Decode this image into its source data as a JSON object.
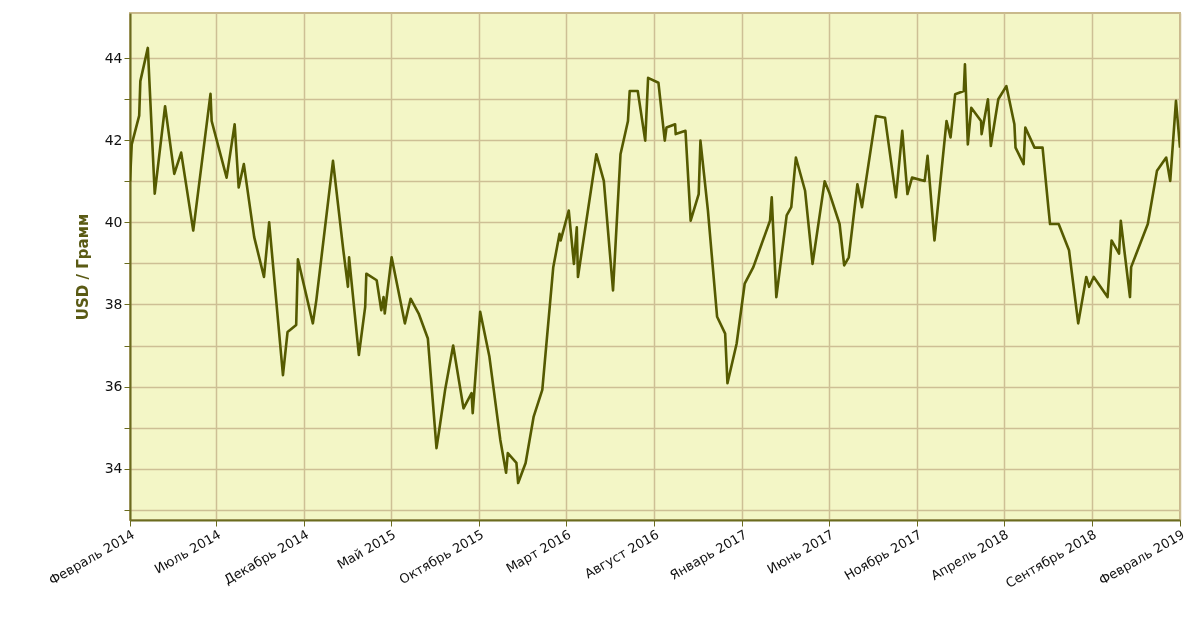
{
  "chart_data": {
    "type": "line",
    "ylabel": "USD / Грамм",
    "xlim": [
      "2014-02-01",
      "2019-02-01"
    ],
    "xticks": [
      {
        "value": "2014-02-01",
        "label": "Февраль 2014"
      },
      {
        "value": "2014-07-01",
        "label": "Июль 2014"
      },
      {
        "value": "2014-12-01",
        "label": "Декабрь 2014"
      },
      {
        "value": "2015-05-01",
        "label": "Май 2015"
      },
      {
        "value": "2015-10-01",
        "label": "Октябрь 2015"
      },
      {
        "value": "2016-03-01",
        "label": "Март 2016"
      },
      {
        "value": "2016-08-01",
        "label": "Август 2016"
      },
      {
        "value": "2017-01-01",
        "label": "Январь 2017"
      },
      {
        "value": "2017-06-01",
        "label": "Июнь 2017"
      },
      {
        "value": "2017-11-01",
        "label": "Ноябрь 2017"
      },
      {
        "value": "2018-04-01",
        "label": "Апрель 2018"
      },
      {
        "value": "2018-09-01",
        "label": "Сентябрь 2018"
      },
      {
        "value": "2019-02-01",
        "label": "Февраль 2019"
      }
    ],
    "ylim": [
      32.75,
      45.1
    ],
    "yticks": [
      {
        "value": 33,
        "label": null
      },
      34,
      {
        "value": 35,
        "label": null
      },
      36,
      {
        "value": 37,
        "label": null
      },
      38,
      {
        "value": 39,
        "label": null
      },
      40,
      {
        "value": 41,
        "label": null
      },
      42,
      {
        "value": 43,
        "label": null
      },
      44
    ],
    "grid": true,
    "marker": "none",
    "line_style": "solid",
    "x": [
      "2014-02-01",
      "2014-02-04",
      "2014-02-17",
      "2014-02-19",
      "2014-03-04",
      "2014-03-16",
      "2014-04-03",
      "2014-04-19",
      "2014-05-01",
      "2014-05-22",
      "2014-06-21",
      "2014-06-23",
      "2014-07-19",
      "2014-08-02",
      "2014-08-09",
      "2014-08-18",
      "2014-09-05",
      "2014-09-22",
      "2014-10-01",
      "2014-10-25",
      "2014-11-02",
      "2014-11-17",
      "2014-11-20",
      "2014-12-16",
      "2014-12-22",
      "2015-01-20",
      "2015-02-07",
      "2015-02-15",
      "2015-02-17",
      "2015-03-06",
      "2015-03-17",
      "2015-03-19",
      "2015-04-06",
      "2015-04-14",
      "2015-04-18",
      "2015-04-20",
      "2015-05-02",
      "2015-05-25",
      "2015-06-04",
      "2015-06-18",
      "2015-07-04",
      "2015-07-19",
      "2015-07-23",
      "2015-08-03",
      "2015-08-17",
      "2015-09-04",
      "2015-09-18",
      "2015-09-20",
      "2015-10-03",
      "2015-10-19",
      "2015-11-07",
      "2015-11-17",
      "2015-11-20",
      "2015-12-05",
      "2015-12-08",
      "2015-12-21",
      "2016-01-04",
      "2016-01-19",
      "2016-02-07",
      "2016-02-18",
      "2016-02-20",
      "2016-03-05",
      "2016-03-14",
      "2016-03-19",
      "2016-03-21",
      "2016-04-22",
      "2016-05-05",
      "2016-05-21",
      "2016-06-03",
      "2016-06-16",
      "2016-06-19",
      "2016-07-03",
      "2016-07-16",
      "2016-07-21",
      "2016-08-08",
      "2016-08-19",
      "2016-08-22",
      "2016-09-06",
      "2016-09-07",
      "2016-09-24",
      "2016-10-03",
      "2016-10-17",
      "2016-10-20",
      "2016-11-02",
      "2016-11-18",
      "2016-12-02",
      "2016-12-06",
      "2016-12-22",
      "2017-01-05",
      "2017-01-20",
      "2017-02-18",
      "2017-02-21",
      "2017-03-01",
      "2017-03-19",
      "2017-03-27",
      "2017-04-04",
      "2017-04-20",
      "2017-05-03",
      "2017-05-24",
      "2017-06-01",
      "2017-06-19",
      "2017-06-27",
      "2017-07-05",
      "2017-07-20",
      "2017-07-28",
      "2017-08-21",
      "2017-09-06",
      "2017-09-25",
      "2017-10-06",
      "2017-10-15",
      "2017-10-23",
      "2017-11-14",
      "2017-11-19",
      "2017-12-01",
      "2017-12-22",
      "2017-12-29",
      "2018-01-06",
      "2018-01-21",
      "2018-01-23",
      "2018-01-28",
      "2018-02-03",
      "2018-02-20",
      "2018-02-21",
      "2018-03-04",
      "2018-03-09",
      "2018-03-22",
      "2018-04-05",
      "2018-04-19",
      "2018-04-21",
      "2018-05-05",
      "2018-05-08",
      "2018-05-24",
      "2018-06-07",
      "2018-06-17",
      "2018-06-20",
      "2018-07-05",
      "2018-07-23",
      "2018-08-08",
      "2018-08-22",
      "2018-08-27",
      "2018-09-04",
      "2018-09-28",
      "2018-10-05",
      "2018-10-18",
      "2018-10-21",
      "2018-11-06",
      "2018-11-08",
      "2018-12-07",
      "2018-12-23",
      "2019-01-08",
      "2019-01-15",
      "2019-01-25",
      "2019-02-01"
    ],
    "series": [
      {
        "color": "#555a00",
        "values": [
          41.0,
          41.9,
          42.6,
          43.44,
          44.25,
          40.7,
          42.83,
          41.18,
          41.7,
          39.8,
          43.13,
          42.47,
          41.09,
          42.39,
          40.85,
          41.42,
          39.64,
          38.67,
          40.0,
          36.28,
          37.33,
          37.5,
          39.1,
          37.54,
          38.1,
          41.5,
          39.32,
          38.43,
          39.15,
          36.77,
          37.94,
          38.75,
          38.59,
          37.86,
          38.18,
          37.78,
          39.15,
          37.54,
          38.14,
          37.78,
          37.17,
          34.5,
          34.87,
          35.92,
          37.0,
          35.47,
          35.84,
          35.35,
          37.82,
          36.73,
          34.7,
          33.9,
          34.38,
          34.14,
          33.65,
          34.14,
          35.27,
          35.92,
          38.9,
          39.72,
          39.56,
          40.29,
          38.99,
          39.88,
          38.67,
          41.66,
          41.01,
          38.34,
          41.66,
          42.47,
          43.2,
          43.2,
          41.99,
          43.52,
          43.4,
          41.99,
          42.31,
          42.39,
          42.15,
          42.23,
          40.04,
          40.69,
          41.99,
          40.29,
          37.7,
          37.29,
          36.08,
          37.05,
          38.51,
          38.91,
          40.04,
          40.61,
          38.18,
          40.17,
          40.37,
          41.58,
          40.77,
          38.99,
          41.0,
          40.73,
          39.96,
          38.95,
          39.15,
          40.93,
          40.37,
          42.59,
          42.55,
          40.61,
          42.23,
          40.69,
          41.09,
          41.01,
          41.62,
          39.56,
          42.47,
          42.07,
          43.12,
          43.2,
          43.85,
          41.9,
          42.79,
          42.47,
          42.15,
          43.0,
          41.86,
          43.0,
          43.32,
          42.39,
          41.82,
          41.42,
          42.31,
          41.82,
          41.82,
          40.37,
          39.96,
          39.96,
          39.32,
          37.54,
          38.67,
          38.43,
          38.67,
          38.18,
          39.56,
          39.24,
          40.04,
          38.18,
          38.91,
          39.96,
          41.26,
          41.58,
          41.01,
          42.96,
          41.82
        ]
      }
    ]
  }
}
